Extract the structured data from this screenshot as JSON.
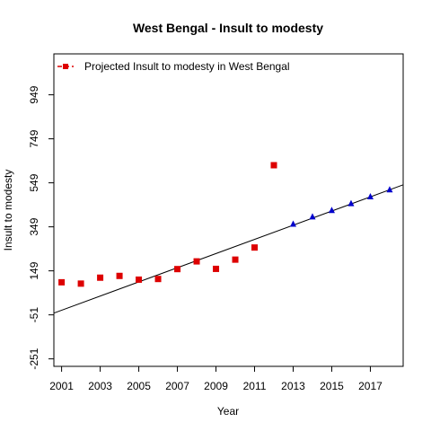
{
  "chart_data": {
    "type": "scatter",
    "title": "West Bengal  -  Insult to modesty",
    "xlabel": "Year",
    "ylabel": "Insult to modesty",
    "xlim": [
      2000.6,
      2018.7
    ],
    "ylim": [
      -285,
      1135
    ],
    "x_ticks": [
      2001,
      2003,
      2005,
      2007,
      2009,
      2011,
      2013,
      2015,
      2017
    ],
    "y_ticks": [
      -251,
      -51,
      149,
      349,
      549,
      749,
      949
    ],
    "grid": false,
    "legend": {
      "placement": "top-left",
      "entries": [
        "Projected  Insult to modesty  in  West Bengal"
      ]
    },
    "series": [
      {
        "name": "",
        "marker": "square",
        "color": "#dd0000",
        "x": [
          2001,
          2002,
          2003,
          2004,
          2005,
          2006,
          2007,
          2008,
          2009,
          2010,
          2011,
          2012
        ],
        "y": [
          97,
          91,
          118,
          126,
          109,
          112,
          157,
          192,
          158,
          200,
          255,
          629
        ]
      },
      {
        "name": "Projected  Insult to modesty  in  West Bengal",
        "marker": "triangle",
        "color": "#0000cc",
        "x": [
          2013,
          2014,
          2015,
          2016,
          2017,
          2018
        ],
        "y": [
          362,
          395,
          424,
          455,
          486,
          518
        ]
      }
    ],
    "trend_line": {
      "x": [
        2000.6,
        2018.7
      ],
      "y": [
        -43,
        540
      ],
      "color": "#000000"
    }
  }
}
